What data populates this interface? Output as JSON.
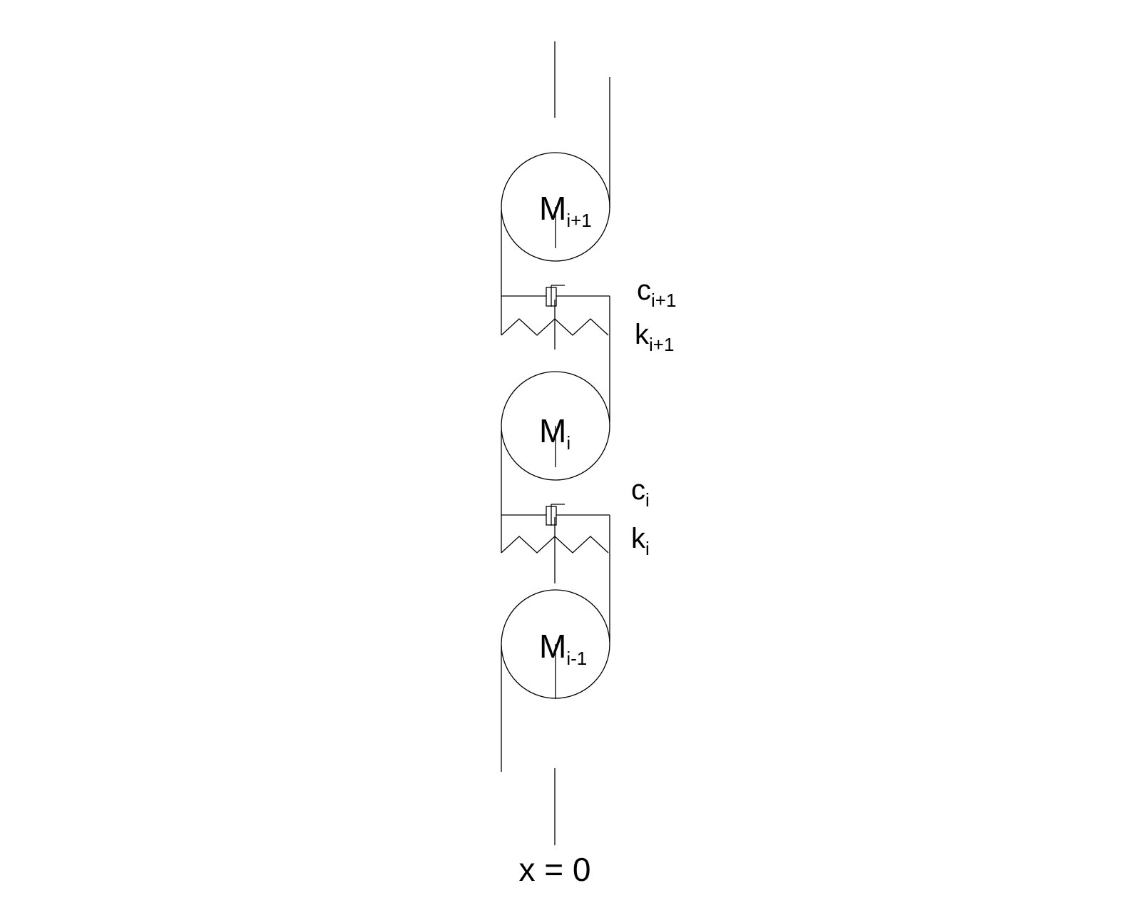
{
  "masses": {
    "upper": {
      "base": "M",
      "sub": "i+1"
    },
    "middle": {
      "base": "M",
      "sub": "i"
    },
    "lower": {
      "base": "M",
      "sub": "i-1"
    }
  },
  "dampers": {
    "upper": {
      "base": "c",
      "sub": "i+1"
    },
    "lower": {
      "base": "c",
      "sub": "i"
    }
  },
  "springs": {
    "upper": {
      "base": "k",
      "sub": "i+1"
    },
    "lower": {
      "base": "k",
      "sub": "i"
    }
  },
  "origin_label": "x = 0",
  "colors": {
    "line": "#000000",
    "background": "#ffffff"
  }
}
